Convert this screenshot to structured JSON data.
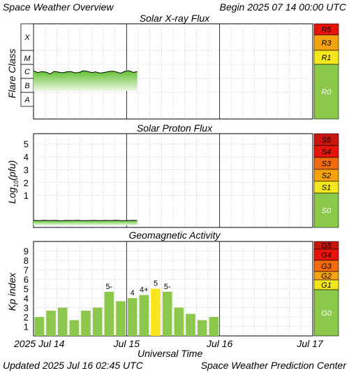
{
  "header": {
    "title": "Space Weather Overview",
    "begin": "Begin 2025 07 14 00:00 UTC"
  },
  "footer": {
    "updated": "Updated 2025 Jul 16 02:45 UTC",
    "center": "Space Weather Prediction Center"
  },
  "colors": {
    "plot_border": "#000000",
    "grid": "#9a9a9a",
    "flux_fill_top": "#6ac43a",
    "flux_fill_bottom": "#e4f5d2",
    "kp_green": "#8cc84b",
    "kp_yellow": "#f8e71c",
    "scale_green": "#8cc84b",
    "scale_yellow": "#f5e71e",
    "scale_orange": "#f5a20f",
    "scale_red_orange": "#f26b0f",
    "scale_red": "#e6140a",
    "scale_dark_red": "#c8150d"
  },
  "chart_data": [
    {
      "type": "area",
      "title": "Solar X-ray Flux",
      "ylabel": "Flare Class",
      "y_categories": [
        "A",
        "B",
        "C",
        "M",
        "X"
      ],
      "flux_class_range_start": [
        3.04,
        2.92,
        2.98,
        2.95,
        2.82,
        3.0,
        2.95,
        2.9,
        2.97,
        2.99,
        2.9,
        2.92,
        3.05,
        3.0,
        2.92,
        2.96,
        2.88,
        2.92,
        2.98,
        3.02,
        2.96,
        2.87,
        3.0,
        3.05,
        2.93,
        2.98
      ],
      "x_range": [
        "2025 Jul 14 00:00",
        "2025 Jul 16 02:45"
      ],
      "scale": [
        {
          "label": "R5",
          "color": "#e6140a"
        },
        {
          "label": "R3",
          "color": "#f5a20f"
        },
        {
          "label": "R1",
          "color": "#f5e71e"
        },
        {
          "label": "R0",
          "color": "#8cc84b"
        }
      ]
    },
    {
      "type": "area",
      "title": "Solar Proton Flux",
      "ylabel": "Log10(pfu)",
      "y_ticks": [
        "1",
        "2",
        "3",
        "4",
        "5"
      ],
      "ylim": [
        -1.5,
        5.8
      ],
      "values": [
        -0.95,
        -0.97,
        -0.94,
        -0.96,
        -0.95,
        -0.98,
        -0.95,
        -0.96,
        -0.94,
        -0.97,
        -0.96,
        -0.95,
        -0.97,
        -0.95,
        -0.96,
        -0.94,
        -0.96,
        -0.97,
        -0.95,
        -0.96
      ],
      "scale": [
        {
          "label": "S5",
          "color": "#c8150d"
        },
        {
          "label": "S4",
          "color": "#e6140a"
        },
        {
          "label": "S3",
          "color": "#f26b0f"
        },
        {
          "label": "S2",
          "color": "#f5a20f"
        },
        {
          "label": "S1",
          "color": "#f5e71e"
        },
        {
          "label": "S0",
          "color": "#8cc84b"
        }
      ]
    },
    {
      "type": "bar",
      "title": "Geomagnetic Activity",
      "ylabel": "Kp index",
      "y_ticks": [
        "1",
        "2",
        "3",
        "4",
        "5",
        "6",
        "7",
        "8",
        "9"
      ],
      "ylim": [
        0,
        10
      ],
      "xlabel": "Universal Time",
      "x_ticks": [
        "2025 Jul 14",
        "Jul 15",
        "Jul 16",
        "Jul 17"
      ],
      "bar_hours": 3,
      "values": [
        2.0,
        2.67,
        3.0,
        1.67,
        2.67,
        3.0,
        4.67,
        3.67,
        4.0,
        4.33,
        5.0,
        4.67,
        3.0,
        2.33,
        1.67,
        2.0
      ],
      "bar_colors": [
        "#8cc84b",
        "#8cc84b",
        "#8cc84b",
        "#8cc84b",
        "#8cc84b",
        "#8cc84b",
        "#8cc84b",
        "#8cc84b",
        "#8cc84b",
        "#8cc84b",
        "#f8e71c",
        "#8cc84b",
        "#8cc84b",
        "#8cc84b",
        "#8cc84b",
        "#8cc84b"
      ],
      "data_labels": [
        "",
        "",
        "",
        "",
        "",
        "",
        "5-",
        "",
        "4",
        "4+",
        "5",
        "5-",
        "",
        "",
        "",
        ""
      ],
      "scale": [
        {
          "label": "G5",
          "color": "#c8150d"
        },
        {
          "label": "G4",
          "color": "#e6140a"
        },
        {
          "label": "G3",
          "color": "#f26b0f"
        },
        {
          "label": "G2",
          "color": "#f5a20f"
        },
        {
          "label": "G1",
          "color": "#f5e71e"
        },
        {
          "label": "G0",
          "color": "#8cc84b"
        }
      ]
    }
  ]
}
